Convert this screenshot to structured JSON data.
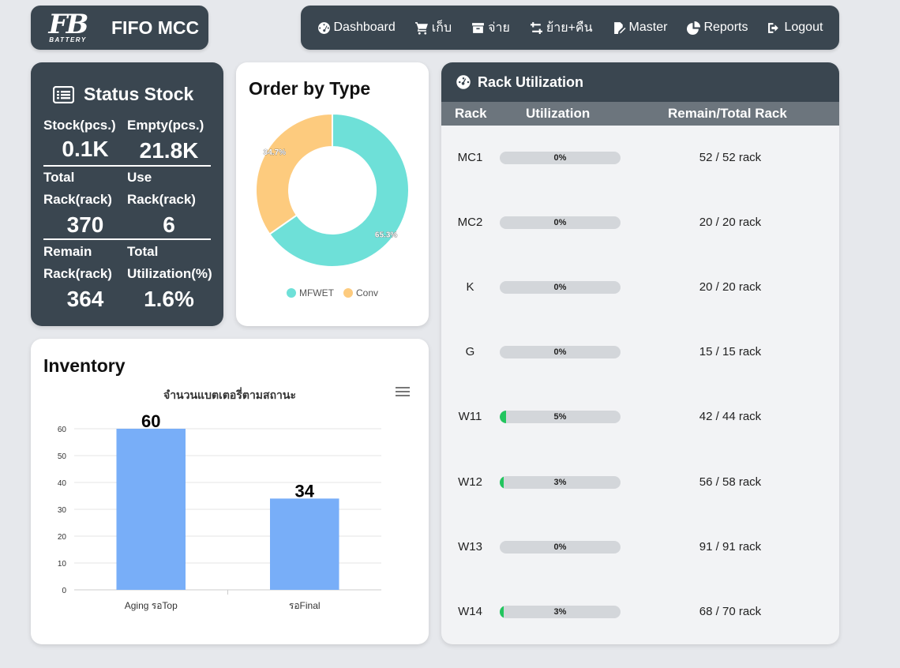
{
  "brand": {
    "logo_text": "FB",
    "logo_sub": "BATTERY",
    "title": "FIFO MCC"
  },
  "nav": [
    {
      "label": "Dashboard",
      "icon": "dashboard-gauge-icon"
    },
    {
      "label": "เก็บ",
      "icon": "cart-icon"
    },
    {
      "label": "จ่าย",
      "icon": "box-icon"
    },
    {
      "label": "ย้าย+คืน",
      "icon": "transfer-icon"
    },
    {
      "label": "Master",
      "icon": "edit-file-icon"
    },
    {
      "label": "Reports",
      "icon": "pie-chart-icon"
    },
    {
      "label": "Logout",
      "icon": "logout-icon"
    }
  ],
  "status_stock": {
    "title": "Status Stock",
    "stock_label": "Stock(pcs.)",
    "stock_value": "0.1K",
    "empty_label": "Empty(pcs.)",
    "empty_value": "21.8K",
    "total_rack_label_1": "Total",
    "total_rack_label_2": "Rack(rack)",
    "total_rack_value": "370",
    "use_rack_label_1": "Use",
    "use_rack_label_2": "Rack(rack)",
    "use_rack_value": "6",
    "remain_label_1": "Remain",
    "remain_label_2": "Rack(rack)",
    "remain_value": "364",
    "util_label_1": "Total",
    "util_label_2": "Utilization(%)",
    "util_value": "1.6%"
  },
  "order_by_type": {
    "title": "Order by Type",
    "chart_data": {
      "type": "pie",
      "categories": [
        "MFWET",
        "Conv"
      ],
      "values": [
        65.3,
        34.7
      ],
      "value_labels": [
        "65.3%",
        "34.7%"
      ],
      "colors": [
        "#6ee0d8",
        "#fdcb7e"
      ],
      "legend": "bottom"
    }
  },
  "inventory": {
    "title": "Inventory",
    "menu_icon": "hamburger-menu-icon",
    "chart_data": {
      "type": "bar",
      "title": "จำนวนแบตเตอรี่ตามสถานะ",
      "categories": [
        "Aging รอTop",
        "รอFinal"
      ],
      "values": [
        60,
        34
      ],
      "ylim": [
        0,
        60
      ],
      "yticks": [
        "0",
        "10",
        "20",
        "30",
        "40",
        "50",
        "60"
      ],
      "grid": true,
      "color": "#78aef8"
    }
  },
  "rack_utilization": {
    "title": "Rack Utilization",
    "icon": "gauge-icon",
    "columns": [
      "Rack",
      "Utilization",
      "Remain/Total Rack"
    ],
    "rows": [
      {
        "rack": "MC1",
        "util": 0,
        "util_label": "0%",
        "remain": "52 / 52 rack"
      },
      {
        "rack": "MC2",
        "util": 0,
        "util_label": "0%",
        "remain": "20 / 20 rack"
      },
      {
        "rack": "K",
        "util": 0,
        "util_label": "0%",
        "remain": "20 / 20 rack"
      },
      {
        "rack": "G",
        "util": 0,
        "util_label": "0%",
        "remain": "15 / 15 rack"
      },
      {
        "rack": "W11",
        "util": 5,
        "util_label": "5%",
        "remain": "42 / 44 rack"
      },
      {
        "rack": "W12",
        "util": 3,
        "util_label": "3%",
        "remain": "56 / 58 rack"
      },
      {
        "rack": "W13",
        "util": 0,
        "util_label": "0%",
        "remain": "91 / 91 rack"
      },
      {
        "rack": "W14",
        "util": 3,
        "util_label": "3%",
        "remain": "68 / 70 rack"
      }
    ]
  },
  "colors": {
    "panel_dark": "#3a4650",
    "accent_green": "#22c55e",
    "column_header": "#6c757d"
  }
}
